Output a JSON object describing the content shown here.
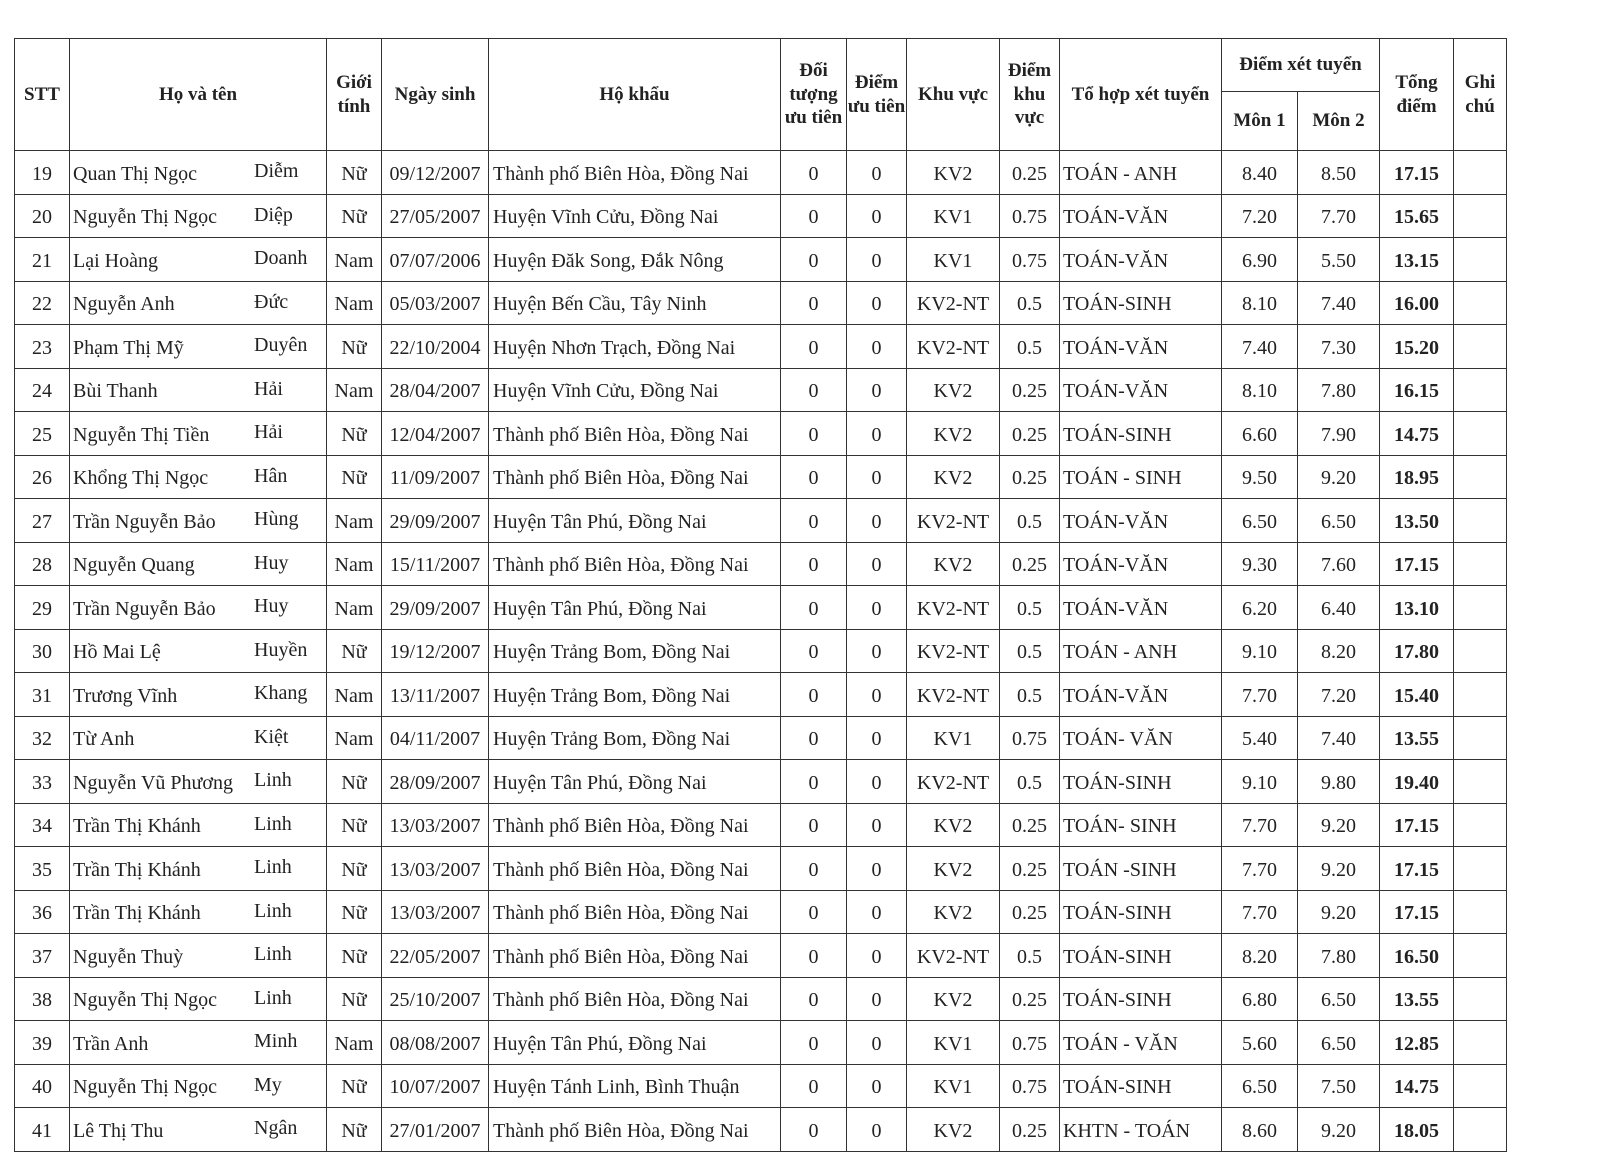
{
  "headers": {
    "stt": "STT",
    "name": "Họ và tên",
    "gender": "Giới tính",
    "dob": "Ngày sinh",
    "address": "Hộ khẩu",
    "priority_group": "Đối tượng ưu tiên",
    "priority_score": "Điểm ưu tiên",
    "region": "Khu vực",
    "region_score": "Điểm khu vực",
    "combo": "Tổ hợp xét tuyển",
    "admission_score": "Điểm xét tuyển",
    "subject1": "Môn 1",
    "subject2": "Môn 2",
    "total": "Tổng điểm",
    "note": "Ghi chú"
  },
  "rows": [
    {
      "stt": "19",
      "surname": "Quan Thị Ngọc",
      "given": "Diễm",
      "gender": "Nữ",
      "dob": "09/12/2007",
      "address": "Thành phố Biên Hòa, Đồng Nai",
      "pg": "0",
      "ps": "0",
      "region": "KV2",
      "rs": "0.25",
      "combo": "TOÁN - ANH",
      "m1": "8.40",
      "m2": "8.50",
      "total": "17.15",
      "note": ""
    },
    {
      "stt": "20",
      "surname": "Nguyễn Thị Ngọc",
      "given": "Diệp",
      "gender": "Nữ",
      "dob": "27/05/2007",
      "address": "Huyện Vĩnh Cửu, Đồng Nai",
      "pg": "0",
      "ps": "0",
      "region": "KV1",
      "rs": "0.75",
      "combo": "TOÁN-VĂN",
      "m1": "7.20",
      "m2": "7.70",
      "total": "15.65",
      "note": ""
    },
    {
      "stt": "21",
      "surname": "Lại Hoàng",
      "given": "Doanh",
      "gender": "Nam",
      "dob": "07/07/2006",
      "address": "Huyện Đăk Song, Đắk Nông",
      "pg": "0",
      "ps": "0",
      "region": "KV1",
      "rs": "0.75",
      "combo": "TOÁN-VĂN",
      "m1": "6.90",
      "m2": "5.50",
      "total": "13.15",
      "note": ""
    },
    {
      "stt": "22",
      "surname": "Nguyễn Anh",
      "given": "Đức",
      "gender": "Nam",
      "dob": "05/03/2007",
      "address": "Huyện Bến Cầu, Tây Ninh",
      "pg": "0",
      "ps": "0",
      "region": "KV2-NT",
      "rs": "0.5",
      "combo": "TOÁN-SINH",
      "m1": "8.10",
      "m2": "7.40",
      "total": "16.00",
      "note": ""
    },
    {
      "stt": "23",
      "surname": "Phạm Thị Mỹ",
      "given": "Duyên",
      "gender": "Nữ",
      "dob": "22/10/2004",
      "address": "Huyện Nhơn Trạch, Đồng Nai",
      "pg": "0",
      "ps": "0",
      "region": "KV2-NT",
      "rs": "0.5",
      "combo": "TOÁN-VĂN",
      "m1": "7.40",
      "m2": "7.30",
      "total": "15.20",
      "note": ""
    },
    {
      "stt": "24",
      "surname": "Bùi Thanh",
      "given": "Hải",
      "gender": "Nam",
      "dob": "28/04/2007",
      "address": "Huyện Vĩnh Cửu, Đồng Nai",
      "pg": "0",
      "ps": "0",
      "region": "KV2",
      "rs": "0.25",
      "combo": "TOÁN-VĂN",
      "m1": "8.10",
      "m2": "7.80",
      "total": "16.15",
      "note": ""
    },
    {
      "stt": "25",
      "surname": "Nguyễn Thị Tiền",
      "given": "Hải",
      "gender": "Nữ",
      "dob": "12/04/2007",
      "address": "Thành phố Biên Hòa, Đồng Nai",
      "pg": "0",
      "ps": "0",
      "region": "KV2",
      "rs": "0.25",
      "combo": "TOÁN-SINH",
      "m1": "6.60",
      "m2": "7.90",
      "total": "14.75",
      "note": ""
    },
    {
      "stt": "26",
      "surname": "Khổng Thị Ngọc",
      "given": "Hân",
      "gender": "Nữ",
      "dob": "11/09/2007",
      "address": "Thành phố Biên Hòa, Đồng Nai",
      "pg": "0",
      "ps": "0",
      "region": "KV2",
      "rs": "0.25",
      "combo": "TOÁN - SINH",
      "m1": "9.50",
      "m2": "9.20",
      "total": "18.95",
      "note": ""
    },
    {
      "stt": "27",
      "surname": "Trần Nguyễn Bảo",
      "given": "Hùng",
      "gender": "Nam",
      "dob": "29/09/2007",
      "address": "Huyện Tân Phú, Đồng Nai",
      "pg": "0",
      "ps": "0",
      "region": "KV2-NT",
      "rs": "0.5",
      "combo": "TOÁN-VĂN",
      "m1": "6.50",
      "m2": "6.50",
      "total": "13.50",
      "note": ""
    },
    {
      "stt": "28",
      "surname": "Nguyễn Quang",
      "given": "Huy",
      "gender": "Nam",
      "dob": "15/11/2007",
      "address": "Thành phố Biên Hòa, Đồng Nai",
      "pg": "0",
      "ps": "0",
      "region": "KV2",
      "rs": "0.25",
      "combo": "TOÁN-VĂN",
      "m1": "9.30",
      "m2": "7.60",
      "total": "17.15",
      "note": ""
    },
    {
      "stt": "29",
      "surname": "Trần Nguyễn Bảo",
      "given": "Huy",
      "gender": "Nam",
      "dob": "29/09/2007",
      "address": "Huyện Tân Phú, Đồng Nai",
      "pg": "0",
      "ps": "0",
      "region": "KV2-NT",
      "rs": "0.5",
      "combo": "TOÁN-VĂN",
      "m1": "6.20",
      "m2": "6.40",
      "total": "13.10",
      "note": ""
    },
    {
      "stt": "30",
      "surname": "Hồ Mai Lệ",
      "given": "Huyền",
      "gender": "Nữ",
      "dob": "19/12/2007",
      "address": "Huyện Trảng Bom, Đồng Nai",
      "pg": "0",
      "ps": "0",
      "region": "KV2-NT",
      "rs": "0.5",
      "combo": "TOÁN - ANH",
      "m1": "9.10",
      "m2": "8.20",
      "total": "17.80",
      "note": ""
    },
    {
      "stt": "31",
      "surname": "Trương Vĩnh",
      "given": "Khang",
      "gender": "Nam",
      "dob": "13/11/2007",
      "address": "Huyện Trảng Bom, Đồng Nai",
      "pg": "0",
      "ps": "0",
      "region": "KV2-NT",
      "rs": "0.5",
      "combo": " TOÁN-VĂN",
      "m1": "7.70",
      "m2": "7.20",
      "total": "15.40",
      "note": ""
    },
    {
      "stt": "32",
      "surname": "Từ Anh",
      "given": "Kiệt",
      "gender": "Nam",
      "dob": "04/11/2007",
      "address": "Huyện Trảng Bom, Đồng Nai",
      "pg": "0",
      "ps": "0",
      "region": "KV1",
      "rs": "0.75",
      "combo": "TOÁN- VĂN",
      "m1": "5.40",
      "m2": "7.40",
      "total": "13.55",
      "note": ""
    },
    {
      "stt": "33",
      "surname": "Nguyễn Vũ Phương",
      "given": "Linh",
      "gender": "Nữ",
      "dob": "28/09/2007",
      "address": "Huyện Tân Phú, Đồng Nai",
      "pg": "0",
      "ps": "0",
      "region": "KV2-NT",
      "rs": "0.5",
      "combo": "TOÁN-SINH",
      "m1": "9.10",
      "m2": "9.80",
      "total": "19.40",
      "note": ""
    },
    {
      "stt": "34",
      "surname": "Trần Thị Khánh",
      "given": "Linh",
      "gender": "Nữ",
      "dob": "13/03/2007",
      "address": "Thành phố Biên Hòa, Đồng Nai",
      "pg": "0",
      "ps": "0",
      "region": "KV2",
      "rs": "0.25",
      "combo": "TOÁN- SINH",
      "m1": "7.70",
      "m2": "9.20",
      "total": "17.15",
      "note": ""
    },
    {
      "stt": "35",
      "surname": "Trần Thị Khánh",
      "given": "Linh",
      "gender": "Nữ",
      "dob": "13/03/2007",
      "address": "Thành phố Biên Hòa, Đồng Nai",
      "pg": "0",
      "ps": "0",
      "region": "KV2",
      "rs": "0.25",
      "combo": "TOÁN -SINH",
      "m1": "7.70",
      "m2": "9.20",
      "total": "17.15",
      "note": ""
    },
    {
      "stt": "36",
      "surname": "Trần Thị Khánh",
      "given": "Linh",
      "gender": "Nữ",
      "dob": "13/03/2007",
      "address": "Thành phố Biên Hòa, Đồng Nai",
      "pg": "0",
      "ps": "0",
      "region": "KV2",
      "rs": "0.25",
      "combo": "TOÁN-SINH",
      "m1": "7.70",
      "m2": "9.20",
      "total": "17.15",
      "note": ""
    },
    {
      "stt": "37",
      "surname": "Nguyễn Thuỳ",
      "given": "Linh",
      "gender": "Nữ",
      "dob": "22/05/2007",
      "address": "Thành phố Biên Hòa, Đồng Nai",
      "pg": "0",
      "ps": "0",
      "region": "KV2-NT",
      "rs": "0.5",
      "combo": "TOÁN-SINH",
      "m1": "8.20",
      "m2": "7.80",
      "total": "16.50",
      "note": ""
    },
    {
      "stt": "38",
      "surname": "Nguyễn Thị Ngọc",
      "given": "Linh",
      "gender": "Nữ",
      "dob": "25/10/2007",
      "address": "Thành phố Biên Hòa, Đồng Nai",
      "pg": "0",
      "ps": "0",
      "region": "KV2",
      "rs": "0.25",
      "combo": "TOÁN-SINH",
      "m1": "6.80",
      "m2": "6.50",
      "total": "13.55",
      "note": ""
    },
    {
      "stt": "39",
      "surname": "Trần Anh",
      "given": "Minh",
      "gender": "Nam",
      "dob": "08/08/2007",
      "address": "Huyện Tân Phú, Đồng Nai",
      "pg": "0",
      "ps": "0",
      "region": "KV1",
      "rs": "0.75",
      "combo": "TOÁN - VĂN",
      "m1": "5.60",
      "m2": "6.50",
      "total": "12.85",
      "note": ""
    },
    {
      "stt": "40",
      "surname": "Nguyễn Thị Ngọc",
      "given": "My",
      "gender": "Nữ",
      "dob": "10/07/2007",
      "address": "Huyện Tánh Linh, Bình Thuận",
      "pg": "0",
      "ps": "0",
      "region": "KV1",
      "rs": "0.75",
      "combo": "TOÁN-SINH",
      "m1": "6.50",
      "m2": "7.50",
      "total": "14.75",
      "note": ""
    },
    {
      "stt": "41",
      "surname": "Lê Thị Thu",
      "given": "Ngân",
      "gender": "Nữ",
      "dob": "27/01/2007",
      "address": "Thành phố Biên Hòa, Đồng Nai",
      "pg": "0",
      "ps": "0",
      "region": "KV2",
      "rs": "0.25",
      "combo": "KHTN - TOÁN",
      "m1": "8.60",
      "m2": "9.20",
      "total": "18.05",
      "note": ""
    }
  ]
}
